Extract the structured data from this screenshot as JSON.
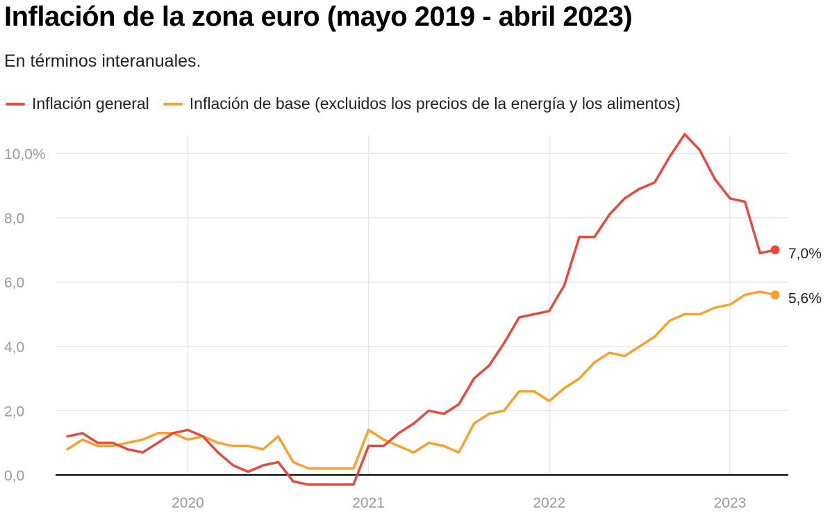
{
  "title": "Inflación de la zona euro (mayo 2019 - abril 2023)",
  "subtitle": "En términos interanuales.",
  "colors": {
    "general": "#e8493b",
    "base": "#f9a12c",
    "grid": "#e6e6e6",
    "axis": "#000000"
  },
  "chart_data": {
    "type": "line",
    "title": "Inflación de la zona euro (mayo 2019 - abril 2023)",
    "subtitle": "En términos interanuales.",
    "x": [
      "2019-05",
      "2019-06",
      "2019-07",
      "2019-08",
      "2019-09",
      "2019-10",
      "2019-11",
      "2019-12",
      "2020-01",
      "2020-02",
      "2020-03",
      "2020-04",
      "2020-05",
      "2020-06",
      "2020-07",
      "2020-08",
      "2020-09",
      "2020-10",
      "2020-11",
      "2020-12",
      "2021-01",
      "2021-02",
      "2021-03",
      "2021-04",
      "2021-05",
      "2021-06",
      "2021-07",
      "2021-08",
      "2021-09",
      "2021-10",
      "2021-11",
      "2021-12",
      "2022-01",
      "2022-02",
      "2022-03",
      "2022-04",
      "2022-05",
      "2022-06",
      "2022-07",
      "2022-08",
      "2022-09",
      "2022-10",
      "2022-11",
      "2022-12",
      "2023-01",
      "2023-02",
      "2023-03",
      "2023-04"
    ],
    "series": [
      {
        "name": "Inflación general",
        "color": "#e8493b",
        "values": [
          1.2,
          1.3,
          1.0,
          1.0,
          0.8,
          0.7,
          1.0,
          1.3,
          1.4,
          1.2,
          0.7,
          0.3,
          0.1,
          0.3,
          0.4,
          -0.2,
          -0.3,
          -0.3,
          -0.3,
          -0.3,
          0.9,
          0.9,
          1.3,
          1.6,
          2.0,
          1.9,
          2.2,
          3.0,
          3.4,
          4.1,
          4.9,
          5.0,
          5.1,
          5.9,
          7.4,
          7.4,
          8.1,
          8.6,
          8.9,
          9.1,
          9.9,
          10.6,
          10.1,
          9.2,
          8.6,
          8.5,
          6.9,
          7.0
        ]
      },
      {
        "name": "Inflación de base (excluidos los precios de la energía y los alimentos)",
        "color": "#f9a12c",
        "values": [
          0.8,
          1.1,
          0.9,
          0.9,
          1.0,
          1.1,
          1.3,
          1.3,
          1.1,
          1.2,
          1.0,
          0.9,
          0.9,
          0.8,
          1.2,
          0.4,
          0.2,
          0.2,
          0.2,
          0.2,
          1.4,
          1.1,
          0.9,
          0.7,
          1.0,
          0.9,
          0.7,
          1.6,
          1.9,
          2.0,
          2.6,
          2.6,
          2.3,
          2.7,
          3.0,
          3.5,
          3.8,
          3.7,
          4.0,
          4.3,
          4.8,
          5.0,
          5.0,
          5.2,
          5.3,
          5.6,
          5.7,
          5.6
        ]
      }
    ],
    "end_labels": [
      "7,0%",
      "5,6%"
    ],
    "x_ticks": [
      {
        "label": "2020",
        "date": "2020-01"
      },
      {
        "label": "2021",
        "date": "2021-01"
      },
      {
        "label": "2022",
        "date": "2022-01"
      },
      {
        "label": "2023",
        "date": "2023-01"
      }
    ],
    "y_ticks": [
      {
        "value": 0,
        "label": "0,0"
      },
      {
        "value": 2,
        "label": "2,0"
      },
      {
        "value": 4,
        "label": "4,0"
      },
      {
        "value": 6,
        "label": "6,0"
      },
      {
        "value": 8,
        "label": "8,0"
      },
      {
        "value": 10,
        "label": "10,0%"
      }
    ],
    "ylim": [
      0,
      10
    ],
    "xlabel": "",
    "ylabel": "",
    "grid": true,
    "legend_position": "top-left"
  }
}
